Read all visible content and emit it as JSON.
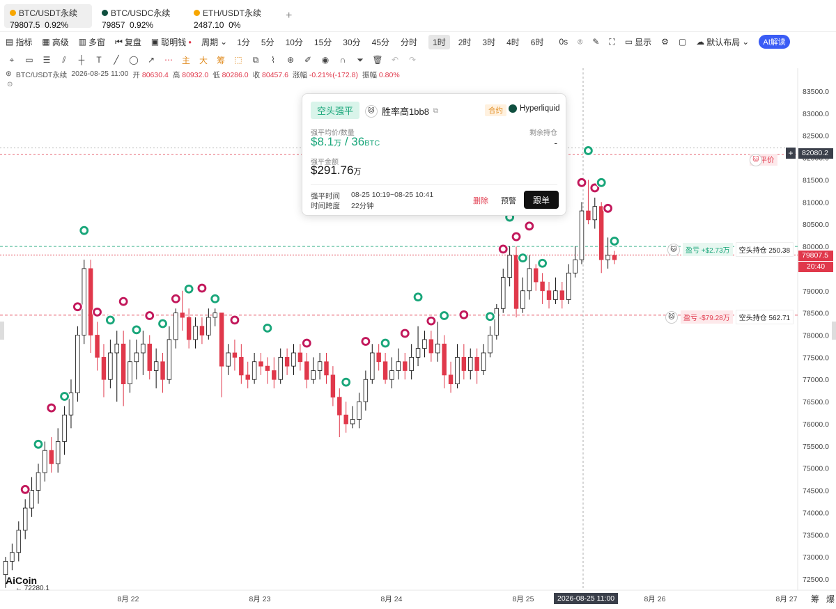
{
  "tickers": [
    {
      "name": "BTC/USDT永续",
      "price": "79807.5",
      "change": "0.92%",
      "dot_color": "#f7a600",
      "active": true
    },
    {
      "name": "BTC/USDC永续",
      "price": "79857",
      "change": "0.92%",
      "dot_color": "#0f4f3f",
      "active": false
    },
    {
      "name": "ETH/USDT永续",
      "price": "2487.10",
      "change": "0%",
      "dot_color": "#f7a600",
      "active": false
    }
  ],
  "add_tab": "+",
  "toolbar": {
    "indicators": "指标",
    "advanced": "高级",
    "multi_window": "多窗",
    "replay": "复盘",
    "smart_money": "聪明钱",
    "period": "周期",
    "timeframes": [
      "1分",
      "5分",
      "10分",
      "15分",
      "30分",
      "45分",
      "分时",
      "1时",
      "2时",
      "3时",
      "4时",
      "6时"
    ],
    "selected_timeframe": "1时",
    "countdown": "0s",
    "display": "显示",
    "layout": "默认布局",
    "ai_interpret": "AI解读"
  },
  "draw_tools": [
    "cursor",
    "rectangle",
    "horizontal-lines",
    "parallel-channel",
    "cross-line",
    "text",
    "trend-line",
    "ellipse",
    "arrow",
    "ray",
    "主",
    "大",
    "筹",
    "chart-tools",
    "copy",
    "ruler",
    "zoom",
    "marker-pen",
    "eye",
    "magnet",
    "filter",
    "trash",
    "undo",
    "redo"
  ],
  "ohlc": {
    "symbol": "BTC/USDT永续",
    "datetime": "2026-08-25 11:00",
    "open_label": "开",
    "open": "80630.4",
    "high_label": "高",
    "high": "80932.0",
    "low_label": "低",
    "low": "80286.0",
    "close_label": "收",
    "close": "80457.6",
    "change_label": "涨幅",
    "change": "-0.21%(-172.8)",
    "amplitude_label": "振幅",
    "amplitude": "0.80%"
  },
  "popup": {
    "type_badge": "空头强平",
    "user": "胜率高1bb8",
    "contract_badge": "合约",
    "exchange": "Hyperliquid",
    "avg_price_label": "强平均价/数量",
    "avg_price": "$8.1",
    "avg_price_unit": "万",
    "qty_sep": " / ",
    "qty": "36",
    "qty_unit": "BTC",
    "remaining_label": "剩余持仓",
    "remaining": "-",
    "amount_label": "强平金额",
    "amount": "$291.76",
    "amount_unit": "万",
    "time_label": "强平时间",
    "time": "08-25 10:19~08-25 10:41",
    "span_label": "时间跨度",
    "span": "22分钟",
    "delete": "删除",
    "alert": "预警",
    "follow": "跟单"
  },
  "positions": [
    {
      "pnl": "盈亏 +$2.73万",
      "pnl_positive": true,
      "pos": "空头持仓 250.38",
      "price": 80000
    },
    {
      "pnl": "盈亏 -$79.28万",
      "pnl_positive": false,
      "pos": "空头持仓 562.71",
      "price": 78450
    }
  ],
  "liquidation": {
    "label": "强平价",
    "price": "82080.2"
  },
  "current_price": {
    "price": "79807.5",
    "countdown": "20:40"
  },
  "hover_label": "2026-08-25 11:00",
  "low_marker": "72280.1",
  "brand": "AiCoin",
  "corner_labels": [
    "筹",
    "爆"
  ],
  "colors": {
    "up": "#19a67a",
    "down": "#e0384b",
    "accent": "#3a5cf5"
  },
  "chart_data": {
    "type": "candlestick",
    "y_ticks": [
      "83500.0",
      "83000.0",
      "82500.0",
      "82000.0",
      "81500.0",
      "81000.0",
      "80500.0",
      "80000.0",
      "79500.0",
      "79000.0",
      "78500.0",
      "78000.0",
      "77500.0",
      "77000.0",
      "76500.0",
      "76000.0",
      "75500.0",
      "75000.0",
      "74500.0",
      "74000.0",
      "73500.0",
      "73000.0",
      "72500.0"
    ],
    "ylim": [
      72200,
      83700
    ],
    "x_ticks": [
      "8月 22",
      "8月 23",
      "8月 24",
      "8月 25",
      "8月 26",
      "8月 27"
    ],
    "candles": [
      [
        72600,
        72900,
        72300,
        73000
      ],
      [
        72900,
        73100,
        72700,
        73300
      ],
      [
        73100,
        73600,
        72900,
        73800
      ],
      [
        73600,
        74100,
        73400,
        74300
      ],
      [
        74100,
        74500,
        73900,
        74800
      ],
      [
        74500,
        74900,
        74200,
        75100
      ],
      [
        74900,
        75400,
        74700,
        75600
      ],
      [
        75400,
        75100,
        74900,
        75700
      ],
      [
        75100,
        75600,
        74900,
        75900
      ],
      [
        75600,
        76200,
        75300,
        76400
      ],
      [
        76200,
        76700,
        75900,
        77000
      ],
      [
        76700,
        78000,
        76500,
        78200
      ],
      [
        78000,
        79500,
        77800,
        79700
      ],
      [
        79500,
        78000,
        77600,
        79700
      ],
      [
        78000,
        77500,
        77200,
        78300
      ],
      [
        77500,
        77000,
        76600,
        77800
      ],
      [
        77000,
        77600,
        76800,
        77900
      ],
      [
        77600,
        77800,
        76500,
        78100
      ],
      [
        77800,
        76900,
        76400,
        78100
      ],
      [
        76900,
        77400,
        76700,
        77900
      ],
      [
        77400,
        77600,
        77000,
        77900
      ],
      [
        77600,
        77800,
        77100,
        78100
      ],
      [
        77800,
        77200,
        77000,
        78000
      ],
      [
        77200,
        77400,
        76800,
        77700
      ],
      [
        77400,
        77000,
        76700,
        77600
      ],
      [
        77000,
        77900,
        76900,
        78200
      ],
      [
        77900,
        78500,
        77700,
        78600
      ],
      [
        78500,
        78400,
        78100,
        79000
      ],
      [
        78400,
        77900,
        77700,
        78600
      ],
      [
        77900,
        78200,
        77700,
        78400
      ],
      [
        78200,
        78000,
        77800,
        78400
      ],
      [
        78000,
        78400,
        77900,
        78600
      ],
      [
        78400,
        78500,
        78200,
        78600
      ],
      [
        78500,
        77300,
        76600,
        78500
      ],
      [
        77300,
        77600,
        77100,
        77800
      ],
      [
        77600,
        77500,
        77200,
        77900
      ],
      [
        77500,
        77100,
        76900,
        77800
      ],
      [
        77100,
        77000,
        76800,
        77400
      ],
      [
        77000,
        77400,
        76900,
        77600
      ],
      [
        77400,
        77300,
        77100,
        77600
      ],
      [
        77300,
        77200,
        76900,
        77500
      ],
      [
        77200,
        77000,
        76800,
        77500
      ],
      [
        77000,
        77500,
        76900,
        77700
      ],
      [
        77500,
        77300,
        77100,
        77700
      ],
      [
        77300,
        77600,
        77100,
        77800
      ],
      [
        77600,
        77400,
        77200,
        77800
      ],
      [
        77400,
        77000,
        76800,
        77600
      ],
      [
        77000,
        77200,
        76900,
        77500
      ],
      [
        77200,
        77400,
        77000,
        77600
      ],
      [
        77400,
        77100,
        76900,
        77600
      ],
      [
        77100,
        76600,
        76400,
        77300
      ],
      [
        76600,
        76200,
        75700,
        76800
      ],
      [
        76200,
        76000,
        75800,
        76500
      ],
      [
        76000,
        76100,
        75900,
        76400
      ],
      [
        76100,
        76500,
        75900,
        76700
      ],
      [
        76500,
        77000,
        76300,
        77200
      ],
      [
        77000,
        77600,
        76900,
        77800
      ],
      [
        77600,
        77400,
        77200,
        77800
      ],
      [
        77400,
        77000,
        76900,
        77600
      ],
      [
        77000,
        77200,
        76800,
        77500
      ],
      [
        77200,
        77400,
        77000,
        77700
      ],
      [
        77400,
        77200,
        77000,
        77600
      ],
      [
        77200,
        77500,
        77000,
        77800
      ],
      [
        77500,
        77700,
        77300,
        78200
      ],
      [
        77700,
        77900,
        77500,
        78100
      ],
      [
        77900,
        77600,
        77400,
        78100
      ],
      [
        77600,
        77800,
        77400,
        78300
      ],
      [
        77800,
        77100,
        76800,
        78000
      ],
      [
        77100,
        76900,
        76700,
        77400
      ],
      [
        76900,
        77500,
        76800,
        77800
      ],
      [
        77500,
        77200,
        77000,
        77800
      ],
      [
        77200,
        77500,
        77000,
        77700
      ],
      [
        77500,
        77200,
        76900,
        77700
      ],
      [
        77200,
        77600,
        77100,
        77800
      ],
      [
        77600,
        78000,
        77500,
        78200
      ],
      [
        78000,
        78600,
        77900,
        78700
      ],
      [
        78600,
        79300,
        78500,
        79500
      ],
      [
        79300,
        79800,
        79100,
        80000
      ],
      [
        79800,
        78600,
        78400,
        80000
      ],
      [
        78600,
        79000,
        78500,
        79300
      ],
      [
        79000,
        79500,
        78800,
        79800
      ],
      [
        79500,
        79200,
        79000,
        79600
      ],
      [
        79200,
        79000,
        78700,
        79400
      ],
      [
        79000,
        78800,
        78600,
        79200
      ],
      [
        78800,
        79000,
        78700,
        79300
      ],
      [
        79000,
        78800,
        78600,
        79200
      ],
      [
        78800,
        79400,
        78700,
        79600
      ],
      [
        79400,
        79700,
        79300,
        80000
      ],
      [
        79700,
        80800,
        79600,
        81000
      ],
      [
        80800,
        80600,
        80500,
        81500
      ],
      [
        80600,
        80900,
        80400,
        81100
      ],
      [
        80900,
        79700,
        79400,
        81000
      ],
      [
        79700,
        79800,
        79500,
        80200
      ],
      [
        79800,
        79700,
        79600,
        79900
      ]
    ]
  }
}
